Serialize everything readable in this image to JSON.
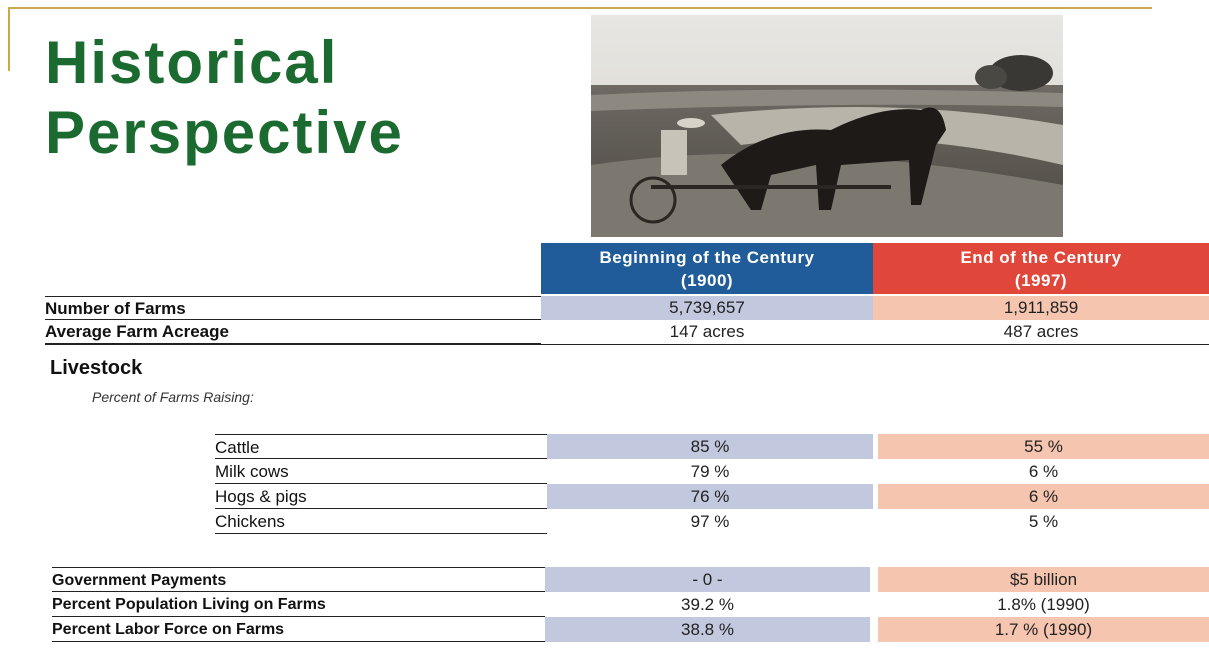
{
  "header": {
    "title": "Historical Perspective"
  },
  "table": {
    "columns": [
      {
        "label": "Beginning of the Century",
        "year": "(1900)"
      },
      {
        "label": "End of the Century",
        "year": "(1997)"
      }
    ],
    "rows": [
      [
        "Number of Farms",
        "5,739,657",
        "1,911,859"
      ],
      [
        "Average Farm Acreage",
        "147 acres",
        "487 acres"
      ]
    ]
  },
  "livestock": {
    "title": "Livestock",
    "subtitle": "Percent of Farms Raising:",
    "rows": [
      [
        "Cattle",
        "85 %",
        "55 %"
      ],
      [
        "Milk cows",
        "79 %",
        "6 %"
      ],
      [
        "Hogs & pigs",
        "76 %",
        "6 %"
      ],
      [
        "Chickens",
        "97 %",
        "5 %"
      ]
    ]
  },
  "other": {
    "rows": [
      [
        "Government Payments",
        "- 0 -",
        "$5 billion"
      ],
      [
        "Percent Population Living on Farms",
        "39.2 %",
        "1.8% (1990)"
      ],
      [
        "Percent Labor Force on Farms",
        "38.8 %",
        "1.7 % (1990)"
      ]
    ]
  }
}
